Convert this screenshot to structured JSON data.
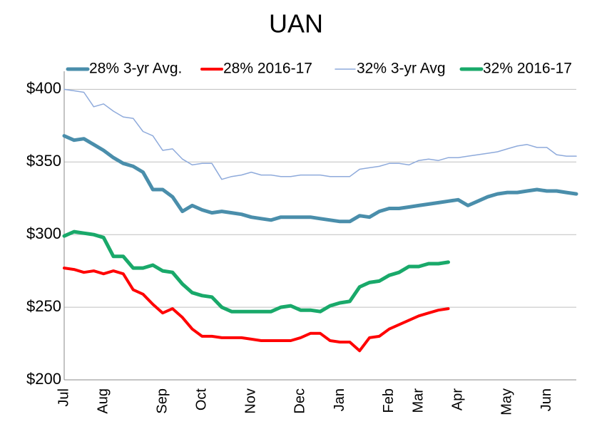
{
  "chart_data": {
    "type": "line",
    "title": "UAN",
    "categories": [
      "Jul",
      null,
      null,
      null,
      "Aug",
      null,
      null,
      null,
      null,
      null,
      "Sep",
      null,
      null,
      null,
      "Oct",
      null,
      null,
      null,
      null,
      "Nov",
      null,
      null,
      null,
      null,
      "Dec",
      null,
      null,
      null,
      "Jan",
      null,
      null,
      null,
      null,
      "Feb",
      null,
      null,
      "Mar",
      null,
      null,
      null,
      "Apr",
      null,
      null,
      null,
      null,
      "May",
      null,
      null,
      null,
      "Jun",
      null,
      null,
      null
    ],
    "series": [
      {
        "name": "28% 3-yr Avg.",
        "color": "#4a8eab",
        "line_width": 5,
        "values": [
          368,
          365,
          366,
          362,
          358,
          353,
          349,
          347,
          343,
          331,
          331,
          326,
          316,
          320,
          317,
          315,
          316,
          315,
          314,
          312,
          311,
          310,
          312,
          312,
          312,
          312,
          311,
          310,
          309,
          309,
          313,
          312,
          316,
          318,
          318,
          319,
          320,
          321,
          322,
          323,
          324,
          320,
          323,
          326,
          328,
          329,
          329,
          330,
          331,
          330,
          330,
          329,
          328
        ]
      },
      {
        "name": "28% 2016-17",
        "color": "#ff0000",
        "line_width": 4,
        "values": [
          277,
          276,
          274,
          275,
          273,
          275,
          273,
          262,
          259,
          252,
          246,
          249,
          243,
          235,
          230,
          230,
          229,
          229,
          229,
          228,
          227,
          227,
          227,
          227,
          229,
          232,
          232,
          227,
          226,
          226,
          220,
          229,
          230,
          235,
          238,
          241,
          244,
          246,
          248,
          249,
          null,
          null,
          null,
          null,
          null,
          null,
          null,
          null,
          null,
          null,
          null,
          null,
          null
        ]
      },
      {
        "name": "32% 3-yr Avg",
        "color": "#8eaadb",
        "line_width": 1.5,
        "values": [
          400,
          399,
          398,
          388,
          390,
          385,
          381,
          380,
          371,
          368,
          358,
          359,
          352,
          348,
          349,
          349,
          338,
          340,
          341,
          343,
          341,
          341,
          340,
          340,
          341,
          341,
          341,
          340,
          340,
          340,
          345,
          346,
          347,
          349,
          349,
          348,
          351,
          352,
          351,
          353,
          353,
          354,
          355,
          356,
          357,
          359,
          361,
          362,
          360,
          360,
          355,
          354,
          354
        ]
      },
      {
        "name": "32% 2016-17",
        "color": "#19a96a",
        "line_width": 5,
        "values": [
          299,
          302,
          301,
          300,
          298,
          285,
          285,
          277,
          277,
          279,
          275,
          274,
          266,
          260,
          258,
          257,
          250,
          247,
          247,
          247,
          247,
          247,
          250,
          251,
          248,
          248,
          247,
          251,
          253,
          254,
          264,
          267,
          268,
          272,
          274,
          278,
          278,
          280,
          280,
          281,
          null,
          null,
          null,
          null,
          null,
          null,
          null,
          null,
          null,
          null,
          null,
          null,
          null
        ]
      }
    ],
    "ylim": [
      200,
      410
    ],
    "yticks": [
      {
        "value": 200,
        "label": "$200"
      },
      {
        "value": 250,
        "label": "$250"
      },
      {
        "value": 300,
        "label": "$300"
      },
      {
        "value": 350,
        "label": "$350"
      },
      {
        "value": 400,
        "label": "$400"
      }
    ],
    "grid": true,
    "legend": "top"
  }
}
